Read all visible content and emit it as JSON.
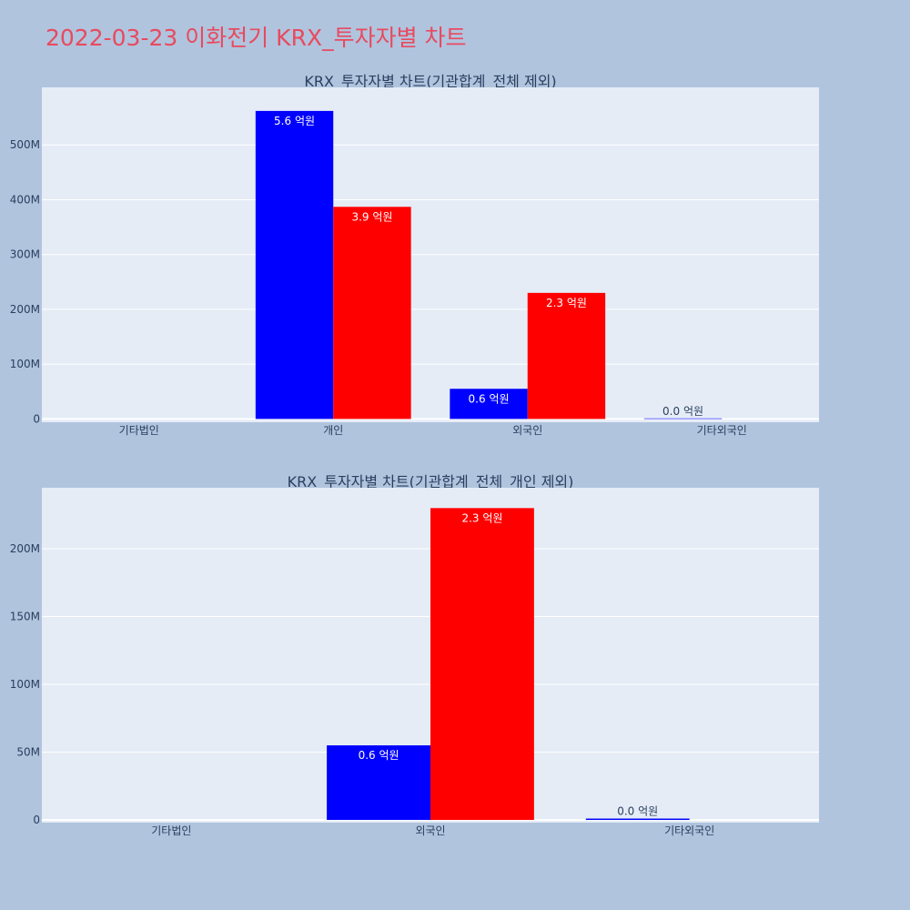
{
  "page": {
    "title": "2022-03-23 이화전기 KRX_투자자별 차트",
    "title_color": "#e84a5f",
    "background": "#b0c4de",
    "plot_background": "#e5ecf6"
  },
  "chart_data": [
    {
      "type": "bar",
      "title": "KRX_투자자별 차트(기관합계_전체 제외)",
      "categories": [
        "기타법인",
        "개인",
        "외국인",
        "기타외국인"
      ],
      "series": [
        {
          "color": "#0000ff",
          "values": [
            0,
            562000000,
            55000000,
            1000000
          ],
          "labels": [
            "",
            "5.6 억원",
            "0.6 억원",
            "0.0 억원"
          ]
        },
        {
          "color": "#ff0000",
          "values": [
            0,
            387000000,
            230000000,
            0
          ],
          "labels": [
            "",
            "3.9 억원",
            "2.3 억원",
            ""
          ]
        }
      ],
      "ylim": [
        -6000000,
        605000000
      ],
      "yticks": [
        0,
        100000000,
        200000000,
        300000000,
        400000000,
        500000000
      ],
      "ytick_labels": [
        "0",
        "100M",
        "200M",
        "300M",
        "400M",
        "500M"
      ],
      "grid": true,
      "legend": "none"
    },
    {
      "type": "bar",
      "title": "KRX_투자자별 차트(기관합계_전체_개인 제외)",
      "categories": [
        "기타법인",
        "외국인",
        "기타외국인"
      ],
      "series": [
        {
          "color": "#0000ff",
          "values": [
            0,
            55000000,
            1000000
          ],
          "labels": [
            "",
            "0.6 억원",
            "0.0 억원"
          ]
        },
        {
          "color": "#ff0000",
          "values": [
            0,
            230000000,
            0
          ],
          "labels": [
            "",
            "2.3 억원",
            ""
          ]
        }
      ],
      "ylim": [
        -2000000,
        245000000
      ],
      "yticks": [
        0,
        50000000,
        100000000,
        150000000,
        200000000
      ],
      "ytick_labels": [
        "0",
        "50M",
        "100M",
        "150M",
        "200M"
      ],
      "grid": true,
      "legend": "none"
    }
  ]
}
